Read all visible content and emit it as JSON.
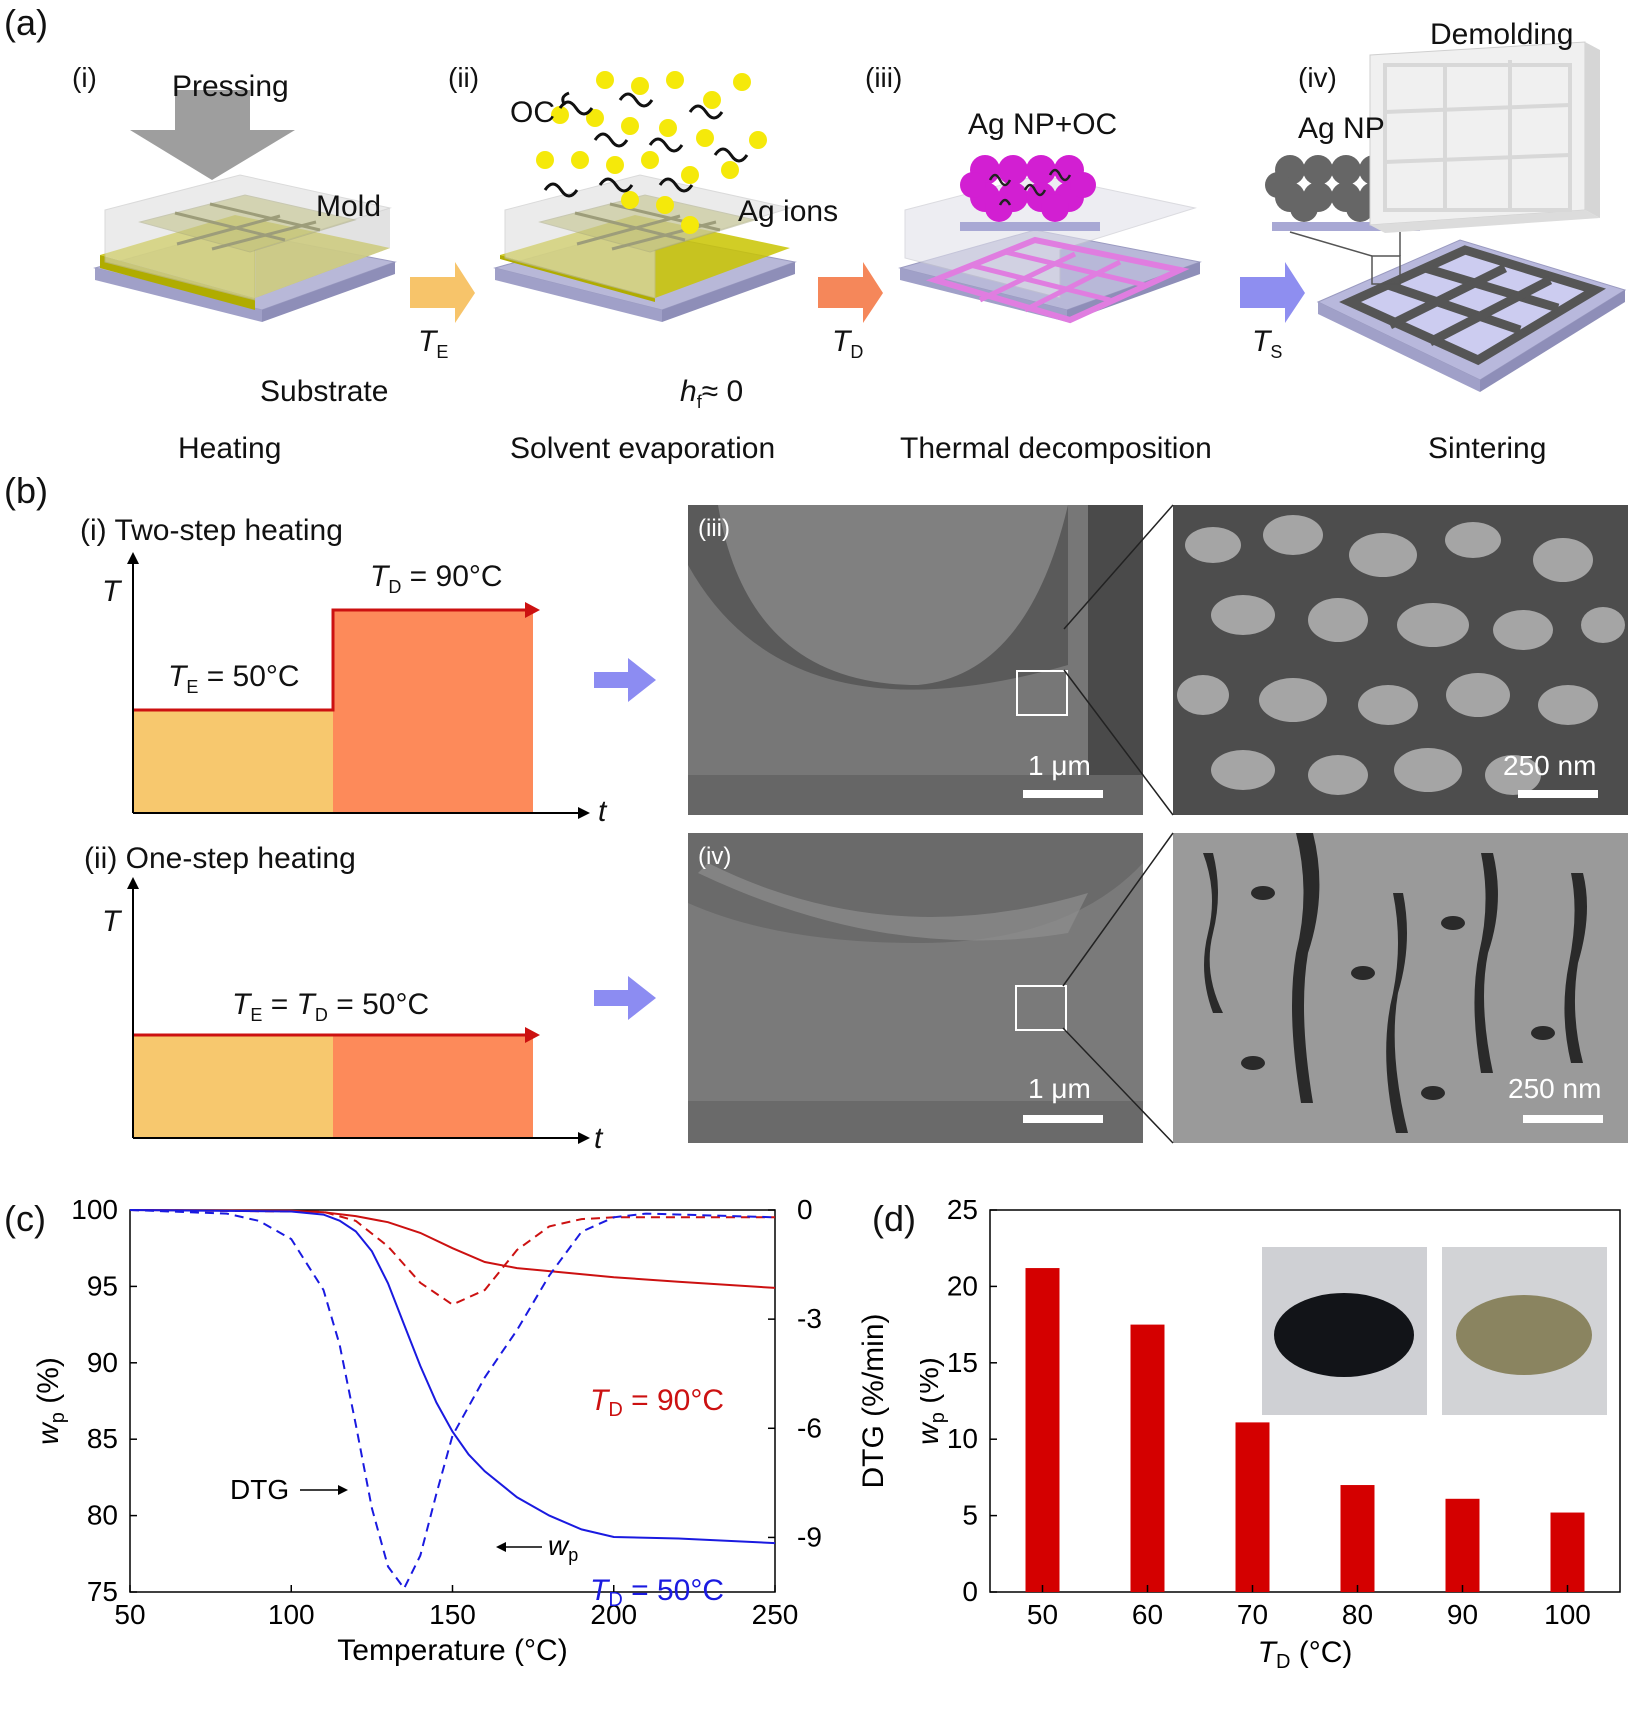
{
  "panels": {
    "a": {
      "letter": "(a)",
      "steps": [
        {
          "num": "(i)",
          "caption": "Heating",
          "labels": {
            "top": "Pressing",
            "mold": "Mold",
            "substrate": "Substrate"
          }
        },
        {
          "num": "(ii)",
          "caption": "Solvent evaporation",
          "labels": {
            "oc": "OC",
            "ions": "Ag ions",
            "hf_var": "h",
            "hf_sub": "f",
            "hf_rest": "≈ 0"
          }
        },
        {
          "num": "(iii)",
          "caption": "Thermal decomposition",
          "labels": {
            "np": "Ag NP+OC"
          }
        },
        {
          "num": "(iv)",
          "caption": "Sintering",
          "labels": {
            "np": "Ag NP",
            "demold": "Demolding"
          }
        }
      ],
      "arrows": [
        {
          "var": "T",
          "sub": "E",
          "color": "#f7c46a"
        },
        {
          "var": "T",
          "sub": "D",
          "color": "#f5875a"
        },
        {
          "var": "T",
          "sub": "S",
          "color": "#8e8ef0"
        }
      ]
    },
    "b": {
      "letter": "(b)",
      "two_step": {
        "title": "(i) Two-step heating",
        "te": "= 50°C",
        "td": "= 90°C"
      },
      "one_step": {
        "title": "(ii) One-step heating",
        "eq1": "= ",
        "eq2": "= 50°C"
      },
      "axis": {
        "T": "T",
        "t": "t"
      },
      "sem": [
        {
          "tag": "(iii)",
          "scale": "1 μm"
        },
        {
          "tag": "",
          "scale": "250 nm"
        },
        {
          "tag": "(iv)",
          "scale": "1 μm"
        },
        {
          "tag": "",
          "scale": "250 nm"
        }
      ]
    },
    "c": {
      "letter": "(c)"
    },
    "d": {
      "letter": "(d)"
    }
  },
  "colors": {
    "orange_light": "#f7c86e",
    "orange": "#fd8a5a",
    "red": "#cc1111",
    "blue": "#1a1ae0",
    "bar": "#d40000",
    "arrow_purple": "#8c8cf2"
  },
  "chart_data": [
    {
      "type": "line",
      "xlabel": "Temperature (°C)",
      "ylabel": "w_p (%)",
      "ylabel2": "DTG (%/min)",
      "xlim": [
        50,
        250
      ],
      "ylim": [
        75,
        100
      ],
      "ylim2": [
        -10.5,
        0
      ],
      "xticks": [
        50,
        100,
        150,
        200,
        250
      ],
      "yticks": [
        75,
        80,
        85,
        90,
        95,
        100
      ],
      "yticks2": [
        0,
        -3,
        -6,
        -9
      ],
      "annotations": [
        {
          "text": "T_D = 90°C",
          "var": "T",
          "sub": "D",
          "rest": " = 90°C"
        },
        {
          "text": "T_D = 50°C",
          "var": "T",
          "sub": "D",
          "rest": " = 50°C"
        },
        {
          "text": "DTG"
        },
        {
          "text": "w_p",
          "var": "w",
          "sub": "p"
        }
      ],
      "series": [
        {
          "style": "solid",
          "color": "#cc1111",
          "axis": "left",
          "x": [
            50,
            100,
            110,
            120,
            130,
            140,
            150,
            160,
            170,
            180,
            200,
            220,
            250
          ],
          "y": [
            100,
            99.95,
            99.85,
            99.6,
            99.2,
            98.5,
            97.5,
            96.6,
            96.2,
            96.0,
            95.6,
            95.3,
            94.9
          ]
        },
        {
          "style": "dashed",
          "color": "#cc1111",
          "axis": "right",
          "x": [
            50,
            110,
            120,
            130,
            140,
            150,
            160,
            170,
            180,
            190,
            200,
            250
          ],
          "y": [
            0,
            -0.05,
            -0.3,
            -1.0,
            -2.0,
            -2.6,
            -2.2,
            -1.1,
            -0.45,
            -0.25,
            -0.2,
            -0.2
          ]
        },
        {
          "style": "solid",
          "color": "#1a1ae0",
          "axis": "left",
          "x": [
            50,
            100,
            110,
            115,
            120,
            125,
            130,
            135,
            140,
            145,
            150,
            155,
            160,
            170,
            180,
            190,
            200,
            220,
            250
          ],
          "y": [
            100,
            99.9,
            99.7,
            99.3,
            98.6,
            97.3,
            95.2,
            92.5,
            89.8,
            87.4,
            85.5,
            84.0,
            82.9,
            81.2,
            80.0,
            79.1,
            78.6,
            78.5,
            78.2
          ]
        },
        {
          "style": "dashed",
          "color": "#1a1ae0",
          "axis": "right",
          "x": [
            50,
            80,
            90,
            100,
            110,
            115,
            120,
            125,
            130,
            135,
            140,
            145,
            150,
            160,
            170,
            180,
            190,
            200,
            210,
            250
          ],
          "y": [
            0,
            -0.1,
            -0.3,
            -0.8,
            -2.2,
            -3.7,
            -5.9,
            -8.2,
            -9.8,
            -10.4,
            -9.5,
            -7.8,
            -6.2,
            -4.6,
            -3.3,
            -1.8,
            -0.6,
            -0.2,
            -0.1,
            -0.2
          ]
        }
      ]
    },
    {
      "type": "bar",
      "xlabel": "T_D (°C)",
      "xlabel_var": "T",
      "xlabel_sub": "D",
      "xlabel_rest": " (°C)",
      "ylabel": "w_p (%)",
      "ylabel_var": "w",
      "ylabel_sub": "p",
      "ylabel_rest": " (%)",
      "categories": [
        "50",
        "60",
        "70",
        "80",
        "90",
        "100"
      ],
      "values": [
        21.2,
        17.5,
        11.1,
        7.0,
        6.1,
        5.2
      ],
      "ylim": [
        0,
        25
      ],
      "yticks": [
        0,
        5,
        10,
        15,
        20,
        25
      ]
    }
  ]
}
